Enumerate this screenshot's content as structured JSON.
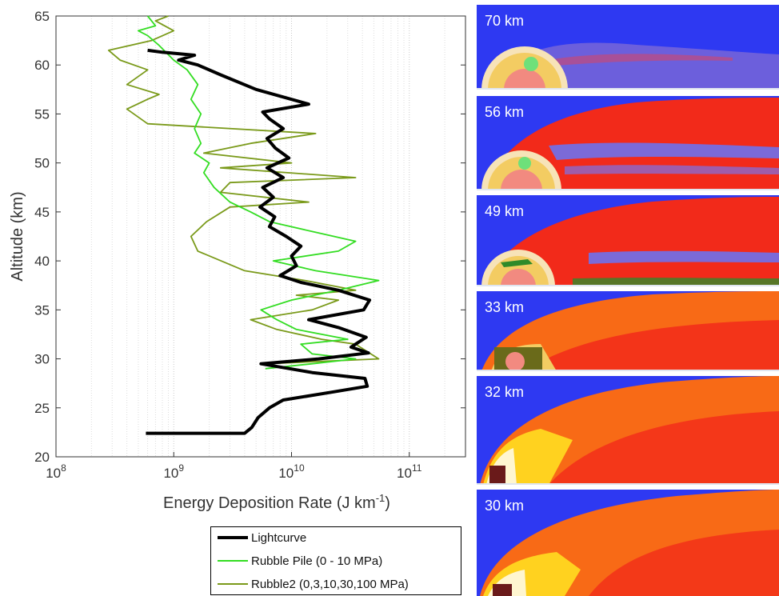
{
  "chart_data": {
    "type": "line",
    "xlabel": "Energy Deposition Rate (J km",
    "xlabel_sup": "-1",
    "xlabel_end": ")",
    "ylabel": "Altitude (km)",
    "xscale": "log",
    "xlim": [
      100000000.0,
      300000000000.0
    ],
    "ylim": [
      20,
      65
    ],
    "x_ticks": [
      {
        "base": "10",
        "exp": "8",
        "v": 100000000.0
      },
      {
        "base": "10",
        "exp": "9",
        "v": 1000000000.0
      },
      {
        "base": "10",
        "exp": "10",
        "v": 10000000000.0
      },
      {
        "base": "10",
        "exp": "11",
        "v": 100000000000.0
      }
    ],
    "y_ticks": [
      "20",
      "25",
      "30",
      "35",
      "40",
      "45",
      "50",
      "55",
      "60",
      "65"
    ],
    "grid": "x-minor",
    "legend_position": "bottom",
    "series": [
      {
        "name": "Lightcurve",
        "color": "#000000",
        "points": [
          [
            580000000.0,
            22.4
          ],
          [
            1500000000.0,
            22.4
          ],
          [
            4000000000.0,
            22.4
          ],
          [
            4600000000.0,
            23.0
          ],
          [
            5200000000.0,
            24.0
          ],
          [
            6500000000.0,
            25.0
          ],
          [
            8500000000.0,
            25.8
          ],
          [
            22000000000.0,
            26.6
          ],
          [
            44000000000.0,
            27.2
          ],
          [
            42000000000.0,
            28.0
          ],
          [
            15000000000.0,
            28.6
          ],
          [
            5500000000.0,
            29.5
          ],
          [
            17000000000.0,
            30.0
          ],
          [
            45000000000.0,
            30.6
          ],
          [
            32000000000.0,
            31.2
          ],
          [
            43000000000.0,
            32.2
          ],
          [
            25000000000.0,
            33.2
          ],
          [
            14000000000.0,
            34.0
          ],
          [
            41000000000.0,
            35.0
          ],
          [
            46000000000.0,
            36.0
          ],
          [
            25000000000.0,
            37.0
          ],
          [
            12000000000.0,
            37.8
          ],
          [
            8000000000.0,
            38.5
          ],
          [
            11000000000.0,
            39.5
          ],
          [
            10000000000.0,
            40.5
          ],
          [
            12000000000.0,
            41.5
          ],
          [
            9000000000.0,
            42.5
          ],
          [
            6500000000.0,
            43.5
          ],
          [
            7200000000.0,
            44.5
          ],
          [
            5400000000.0,
            45.5
          ],
          [
            7000000000.0,
            46.5
          ],
          [
            5700000000.0,
            47.5
          ],
          [
            8500000000.0,
            48.5
          ],
          [
            6200000000.0,
            49.5
          ],
          [
            9500000000.0,
            50.5
          ],
          [
            7300000000.0,
            51.5
          ],
          [
            6200000000.0,
            52.5
          ],
          [
            8500000000.0,
            53.5
          ],
          [
            6500000000.0,
            54.5
          ],
          [
            5700000000.0,
            55.2
          ],
          [
            14000000000.0,
            56.0
          ],
          [
            5000000000.0,
            57.5
          ],
          [
            2500000000.0,
            59.0
          ],
          [
            1600000000.0,
            60.0
          ],
          [
            1100000000.0,
            60.5
          ],
          [
            1500000000.0,
            61.0
          ],
          [
            800000000.0,
            61.3
          ],
          [
            600000000.0,
            61.5
          ]
        ]
      },
      {
        "name": "Rubble Pile (0 - 10 MPa)",
        "color": "#33dd22",
        "points": [
          [
            6000000000.0,
            29.0
          ],
          [
            15000000000.0,
            29.5
          ],
          [
            35000000000.0,
            30.0
          ],
          [
            15000000000.0,
            30.5
          ],
          [
            12000000000.0,
            31.5
          ],
          [
            30000000000.0,
            32.0
          ],
          [
            11000000000.0,
            33.0
          ],
          [
            7500000000.0,
            34.0
          ],
          [
            5500000000.0,
            35.0
          ],
          [
            10000000000.0,
            36.0
          ],
          [
            25000000000.0,
            37.0
          ],
          [
            55000000000.0,
            38.0
          ],
          [
            16000000000.0,
            39.0
          ],
          [
            7000000000.0,
            40.0
          ],
          [
            25000000000.0,
            41.0
          ],
          [
            35000000000.0,
            42.0
          ],
          [
            15000000000.0,
            43.0
          ],
          [
            6500000000.0,
            44.0
          ],
          [
            4500000000.0,
            45.0
          ],
          [
            3000000000.0,
            46.0
          ],
          [
            2200000000.0,
            47.5
          ],
          [
            1800000000.0,
            49.0
          ],
          [
            2000000000.0,
            50.0
          ],
          [
            1500000000.0,
            51.0
          ],
          [
            1700000000.0,
            52.0
          ],
          [
            1500000000.0,
            53.5
          ],
          [
            1700000000.0,
            55.0
          ],
          [
            1400000000.0,
            56.5
          ],
          [
            1600000000.0,
            58.0
          ],
          [
            1300000000.0,
            59.5
          ],
          [
            1000000000.0,
            60.5
          ],
          [
            750000000.0,
            62.0
          ],
          [
            600000000.0,
            63.0
          ],
          [
            500000000.0,
            63.5
          ],
          [
            700000000.0,
            64.0
          ],
          [
            600000000.0,
            65.0
          ]
        ]
      },
      {
        "name": "Rubble2 (0,3,10,30,100 MPa)",
        "color": "#7a9a1a",
        "points": [
          [
            6000000000.0,
            29.5
          ],
          [
            55000000000.0,
            30.0
          ],
          [
            35000000000.0,
            31.5
          ],
          [
            18000000000.0,
            32.0
          ],
          [
            7500000000.0,
            33.0
          ],
          [
            4500000000.0,
            34.0
          ],
          [
            15000000000.0,
            35.0
          ],
          [
            25000000000.0,
            36.0
          ],
          [
            11000000000.0,
            36.5
          ],
          [
            35000000000.0,
            37.0
          ],
          [
            13000000000.0,
            38.0
          ],
          [
            4000000000.0,
            39.0
          ],
          [
            1600000000.0,
            41.0
          ],
          [
            1400000000.0,
            42.5
          ],
          [
            1900000000.0,
            44.0
          ],
          [
            3000000000.0,
            45.5
          ],
          [
            14000000000.0,
            46.0
          ],
          [
            2500000000.0,
            47.0
          ],
          [
            3000000000.0,
            48.0
          ],
          [
            35000000000.0,
            48.5
          ],
          [
            2500000000.0,
            49.5
          ],
          [
            10000000000.0,
            50.0
          ],
          [
            1800000000.0,
            51.0
          ],
          [
            4500000000.0,
            52.0
          ],
          [
            16000000000.0,
            53.0
          ],
          [
            600000000.0,
            54.0
          ],
          [
            400000000.0,
            55.5
          ],
          [
            600000000.0,
            56.5
          ],
          [
            750000000.0,
            57.0
          ],
          [
            400000000.0,
            58.0
          ],
          [
            600000000.0,
            59.5
          ],
          [
            350000000.0,
            60.5
          ],
          [
            280000000.0,
            61.5
          ],
          [
            650000000.0,
            62.5
          ],
          [
            1000000000.0,
            63.5
          ],
          [
            700000000.0,
            64.5
          ],
          [
            900000000.0,
            65.0
          ]
        ]
      }
    ]
  },
  "panels": [
    {
      "label": "70 km",
      "plume": "thin"
    },
    {
      "label": "56 km",
      "plume": "full"
    },
    {
      "label": "49 km",
      "plume": "full"
    },
    {
      "label": "33 km",
      "plume": "hot"
    },
    {
      "label": "32 km",
      "plume": "hot"
    },
    {
      "label": "30 km",
      "plume": "hot"
    }
  ],
  "colors": {
    "background_blue": "#2e39f2",
    "plume_red": "#f22a1a",
    "plume_orange": "#f86a16",
    "plume_yellow": "#ffd21f",
    "core_pink": "#f28a80"
  }
}
